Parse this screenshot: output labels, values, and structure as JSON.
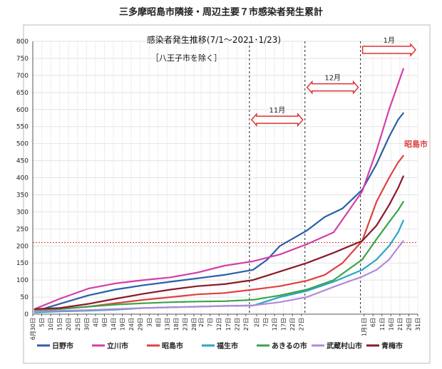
{
  "page": {
    "title": "三多摩昭島市隣接・周辺主要７市感染者発生累計"
  },
  "chart_data": {
    "type": "line",
    "title": "感染者発生推移(7/1～2021･1/23)",
    "subtitle": "［八王子市を除く］",
    "highlight_label": "昭島市",
    "ylim": [
      0,
      800
    ],
    "yticks": [
      0,
      50,
      100,
      150,
      200,
      250,
      300,
      350,
      400,
      450,
      500,
      550,
      600,
      650,
      700,
      750,
      800
    ],
    "xtick_labels": [
      "6月30日",
      "5日",
      "10日",
      "15日",
      "20日",
      "25日",
      "30日",
      "4日",
      "9日",
      "14日",
      "19日",
      "24日",
      "29日",
      "3日",
      "8日",
      "13日",
      "18日",
      "23日",
      "28日",
      "2日",
      "7日",
      "12日",
      "17日",
      "22日",
      "27日",
      "2日",
      "7日",
      "12日",
      "17日",
      "22日",
      "27日",
      "1月1日",
      "6日",
      "11日",
      "16日",
      "21日",
      "26日",
      "31日"
    ],
    "x_start": "2020-06-30",
    "x_end": "2021-01-31",
    "x_tick_dates": [
      "2020-06-30",
      "2020-07-05",
      "2020-07-10",
      "2020-07-15",
      "2020-07-20",
      "2020-07-25",
      "2020-07-30",
      "2020-08-04",
      "2020-08-09",
      "2020-08-14",
      "2020-08-19",
      "2020-08-24",
      "2020-08-29",
      "2020-09-03",
      "2020-09-08",
      "2020-09-13",
      "2020-09-18",
      "2020-09-23",
      "2020-09-28",
      "2020-10-02",
      "2020-10-07",
      "2020-10-12",
      "2020-10-17",
      "2020-10-22",
      "2020-10-27",
      "2020-11-02",
      "2020-11-07",
      "2020-11-12",
      "2020-11-17",
      "2020-11-22",
      "2020-11-27",
      "2021-01-01",
      "2021-01-06",
      "2021-01-11",
      "2021-01-16",
      "2021-01-21",
      "2021-01-26",
      "2021-01-31"
    ],
    "reference_lines": {
      "horizontal_value": 210,
      "vertical_dates": [
        "2020-10-29",
        "2020-11-29",
        "2020-12-30"
      ]
    },
    "period_arrows": [
      {
        "label": "11月",
        "from": "2020-10-29",
        "to": "2020-11-29",
        "y": 570,
        "double": true
      },
      {
        "label": "12月",
        "from": "2020-11-29",
        "to": "2020-12-30",
        "y": 665,
        "double": true
      },
      {
        "label": "1月",
        "from": "2020-12-30",
        "to": "2021-01-31",
        "y": 775,
        "double": false
      }
    ],
    "series": [
      {
        "name": "日野市",
        "color": "#2b5fa8",
        "points": [
          [
            "2020-07-01",
            8
          ],
          [
            "2020-07-15",
            30
          ],
          [
            "2020-07-31",
            55
          ],
          [
            "2020-08-15",
            72
          ],
          [
            "2020-08-31",
            85
          ],
          [
            "2020-09-15",
            95
          ],
          [
            "2020-09-30",
            105
          ],
          [
            "2020-10-15",
            115
          ],
          [
            "2020-10-31",
            130
          ],
          [
            "2020-11-08",
            160
          ],
          [
            "2020-11-15",
            200
          ],
          [
            "2020-11-30",
            245
          ],
          [
            "2020-12-10",
            285
          ],
          [
            "2020-12-20",
            310
          ],
          [
            "2020-12-31",
            365
          ],
          [
            "2021-01-08",
            440
          ],
          [
            "2021-01-15",
            520
          ],
          [
            "2021-01-20",
            570
          ],
          [
            "2021-01-23",
            590
          ]
        ]
      },
      {
        "name": "立川市",
        "color": "#d43fa8",
        "points": [
          [
            "2020-07-01",
            15
          ],
          [
            "2020-07-15",
            45
          ],
          [
            "2020-07-31",
            75
          ],
          [
            "2020-08-15",
            90
          ],
          [
            "2020-08-31",
            100
          ],
          [
            "2020-09-15",
            108
          ],
          [
            "2020-09-30",
            122
          ],
          [
            "2020-10-15",
            142
          ],
          [
            "2020-10-31",
            155
          ],
          [
            "2020-11-15",
            175
          ],
          [
            "2020-11-30",
            205
          ],
          [
            "2020-12-15",
            240
          ],
          [
            "2020-12-31",
            360
          ],
          [
            "2021-01-08",
            480
          ],
          [
            "2021-01-15",
            600
          ],
          [
            "2021-01-20",
            675
          ],
          [
            "2021-01-23",
            720
          ]
        ]
      },
      {
        "name": "昭島市",
        "color": "#e04040",
        "points": [
          [
            "2020-07-01",
            10
          ],
          [
            "2020-07-15",
            15
          ],
          [
            "2020-07-31",
            22
          ],
          [
            "2020-08-15",
            32
          ],
          [
            "2020-08-31",
            42
          ],
          [
            "2020-09-15",
            50
          ],
          [
            "2020-09-30",
            58
          ],
          [
            "2020-10-15",
            62
          ],
          [
            "2020-10-31",
            72
          ],
          [
            "2020-11-15",
            82
          ],
          [
            "2020-11-30",
            98
          ],
          [
            "2020-12-10",
            115
          ],
          [
            "2020-12-20",
            150
          ],
          [
            "2020-12-31",
            215
          ],
          [
            "2021-01-08",
            330
          ],
          [
            "2021-01-15",
            400
          ],
          [
            "2021-01-20",
            445
          ],
          [
            "2021-01-23",
            465
          ]
        ]
      },
      {
        "name": "福生市",
        "color": "#2aa6c4",
        "points": [
          [
            "2020-07-01",
            5
          ],
          [
            "2020-07-15",
            8
          ],
          [
            "2020-07-31",
            10
          ],
          [
            "2020-08-15",
            13
          ],
          [
            "2020-08-31",
            18
          ],
          [
            "2020-09-15",
            20
          ],
          [
            "2020-09-30",
            22
          ],
          [
            "2020-10-15",
            24
          ],
          [
            "2020-10-31",
            25
          ],
          [
            "2020-11-15",
            50
          ],
          [
            "2020-11-30",
            68
          ],
          [
            "2020-12-15",
            95
          ],
          [
            "2020-12-31",
            130
          ],
          [
            "2021-01-08",
            160
          ],
          [
            "2021-01-15",
            200
          ],
          [
            "2021-01-20",
            240
          ],
          [
            "2021-01-23",
            275
          ]
        ]
      },
      {
        "name": "あきるの市",
        "color": "#3ca34a",
        "points": [
          [
            "2020-07-01",
            12
          ],
          [
            "2020-07-15",
            15
          ],
          [
            "2020-07-31",
            22
          ],
          [
            "2020-08-15",
            28
          ],
          [
            "2020-08-31",
            32
          ],
          [
            "2020-09-15",
            35
          ],
          [
            "2020-09-30",
            37
          ],
          [
            "2020-10-15",
            38
          ],
          [
            "2020-10-31",
            42
          ],
          [
            "2020-11-15",
            55
          ],
          [
            "2020-11-30",
            72
          ],
          [
            "2020-12-15",
            100
          ],
          [
            "2020-12-31",
            160
          ],
          [
            "2021-01-08",
            220
          ],
          [
            "2021-01-15",
            270
          ],
          [
            "2021-01-20",
            305
          ],
          [
            "2021-01-23",
            330
          ]
        ]
      },
      {
        "name": "武蔵村山市",
        "color": "#b28ad6",
        "points": [
          [
            "2020-07-01",
            8
          ],
          [
            "2020-07-15",
            10
          ],
          [
            "2020-07-31",
            12
          ],
          [
            "2020-08-15",
            15
          ],
          [
            "2020-08-31",
            18
          ],
          [
            "2020-09-15",
            20
          ],
          [
            "2020-09-30",
            22
          ],
          [
            "2020-10-15",
            24
          ],
          [
            "2020-10-31",
            26
          ],
          [
            "2020-11-15",
            35
          ],
          [
            "2020-11-30",
            50
          ],
          [
            "2020-12-15",
            80
          ],
          [
            "2020-12-31",
            110
          ],
          [
            "2021-01-08",
            130
          ],
          [
            "2021-01-15",
            160
          ],
          [
            "2021-01-20",
            195
          ],
          [
            "2021-01-23",
            215
          ]
        ]
      },
      {
        "name": "青梅市",
        "color": "#8b1a2a",
        "points": [
          [
            "2020-07-01",
            15
          ],
          [
            "2020-07-15",
            18
          ],
          [
            "2020-07-31",
            30
          ],
          [
            "2020-08-15",
            45
          ],
          [
            "2020-08-31",
            60
          ],
          [
            "2020-09-15",
            72
          ],
          [
            "2020-09-30",
            82
          ],
          [
            "2020-10-15",
            88
          ],
          [
            "2020-10-31",
            100
          ],
          [
            "2020-11-15",
            125
          ],
          [
            "2020-11-30",
            150
          ],
          [
            "2020-12-15",
            180
          ],
          [
            "2020-12-31",
            215
          ],
          [
            "2021-01-08",
            260
          ],
          [
            "2021-01-15",
            320
          ],
          [
            "2021-01-20",
            370
          ],
          [
            "2021-01-23",
            405
          ]
        ]
      }
    ]
  }
}
